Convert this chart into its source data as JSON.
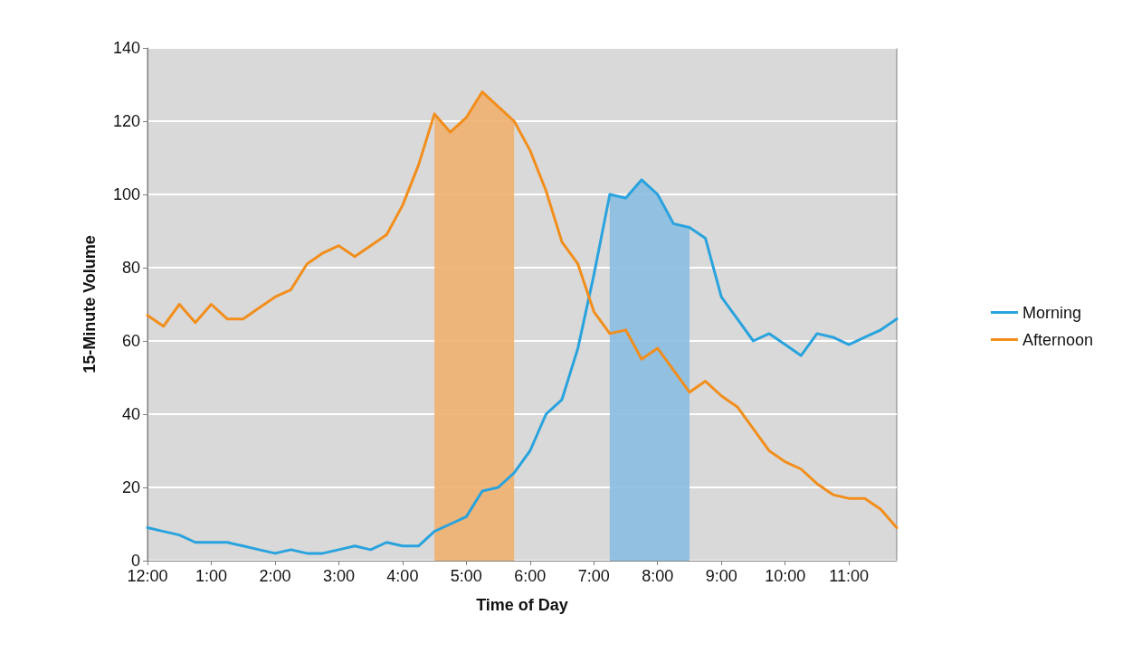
{
  "chart_data": {
    "type": "line",
    "xlabel": "Time of Day",
    "ylabel": "15-Minute Volume",
    "categories": [
      "12:00",
      null,
      null,
      null,
      "1:00",
      null,
      null,
      null,
      "2:00",
      null,
      null,
      null,
      "3:00",
      null,
      null,
      null,
      "4:00",
      null,
      null,
      null,
      "5:00",
      null,
      null,
      null,
      "6:00",
      null,
      null,
      null,
      "7:00",
      null,
      null,
      null,
      "8:00",
      null,
      null,
      null,
      "9:00",
      null,
      null,
      null,
      "10:00",
      null,
      null,
      null,
      "11:00",
      null,
      null,
      null
    ],
    "series": [
      {
        "type": "area",
        "color": "#f0b070",
        "values": [
          null,
          null,
          null,
          null,
          null,
          null,
          null,
          null,
          null,
          null,
          null,
          null,
          null,
          null,
          null,
          null,
          null,
          null,
          122,
          117,
          121,
          128,
          124,
          120,
          null,
          null,
          null,
          null,
          null,
          null,
          null,
          null,
          null,
          null,
          null,
          null,
          null,
          null,
          null,
          null,
          null,
          null,
          null,
          null,
          null,
          null,
          null,
          null
        ]
      },
      {
        "type": "area",
        "color": "#88bce0",
        "values": [
          null,
          null,
          null,
          null,
          null,
          null,
          null,
          null,
          null,
          null,
          null,
          null,
          null,
          null,
          null,
          null,
          null,
          null,
          null,
          null,
          null,
          null,
          null,
          null,
          null,
          null,
          null,
          null,
          null,
          100,
          99,
          104,
          100,
          92,
          91,
          null,
          null,
          null,
          null,
          null,
          null,
          null,
          null,
          null,
          null,
          null,
          null,
          null
        ]
      },
      {
        "name": "Morning",
        "color": "#29a3dd",
        "values": [
          9,
          8,
          7,
          5,
          5,
          5,
          4,
          3,
          2,
          3,
          2,
          2,
          3,
          4,
          3,
          5,
          4,
          4,
          8,
          10,
          12,
          19,
          20,
          24,
          30,
          40,
          44,
          58,
          78,
          100,
          99,
          104,
          100,
          92,
          91,
          88,
          72,
          66,
          60,
          62,
          59,
          56,
          62,
          61,
          59,
          61,
          63,
          66
        ]
      },
      {
        "name": "Afternoon",
        "color": "#f28e1c",
        "values": [
          67,
          64,
          70,
          65,
          70,
          66,
          66,
          69,
          72,
          74,
          81,
          84,
          86,
          83,
          86,
          89,
          97,
          108,
          122,
          117,
          121,
          128,
          124,
          120,
          112,
          101,
          87,
          81,
          68,
          62,
          63,
          55,
          58,
          52,
          46,
          49,
          45,
          42,
          36,
          30,
          27,
          25,
          21,
          18,
          17,
          17,
          14,
          9
        ]
      }
    ],
    "ylim": [
      0,
      140
    ],
    "yticks": [
      0,
      20,
      40,
      60,
      80,
      100,
      120,
      140
    ],
    "grid": "y",
    "legend": "right"
  }
}
